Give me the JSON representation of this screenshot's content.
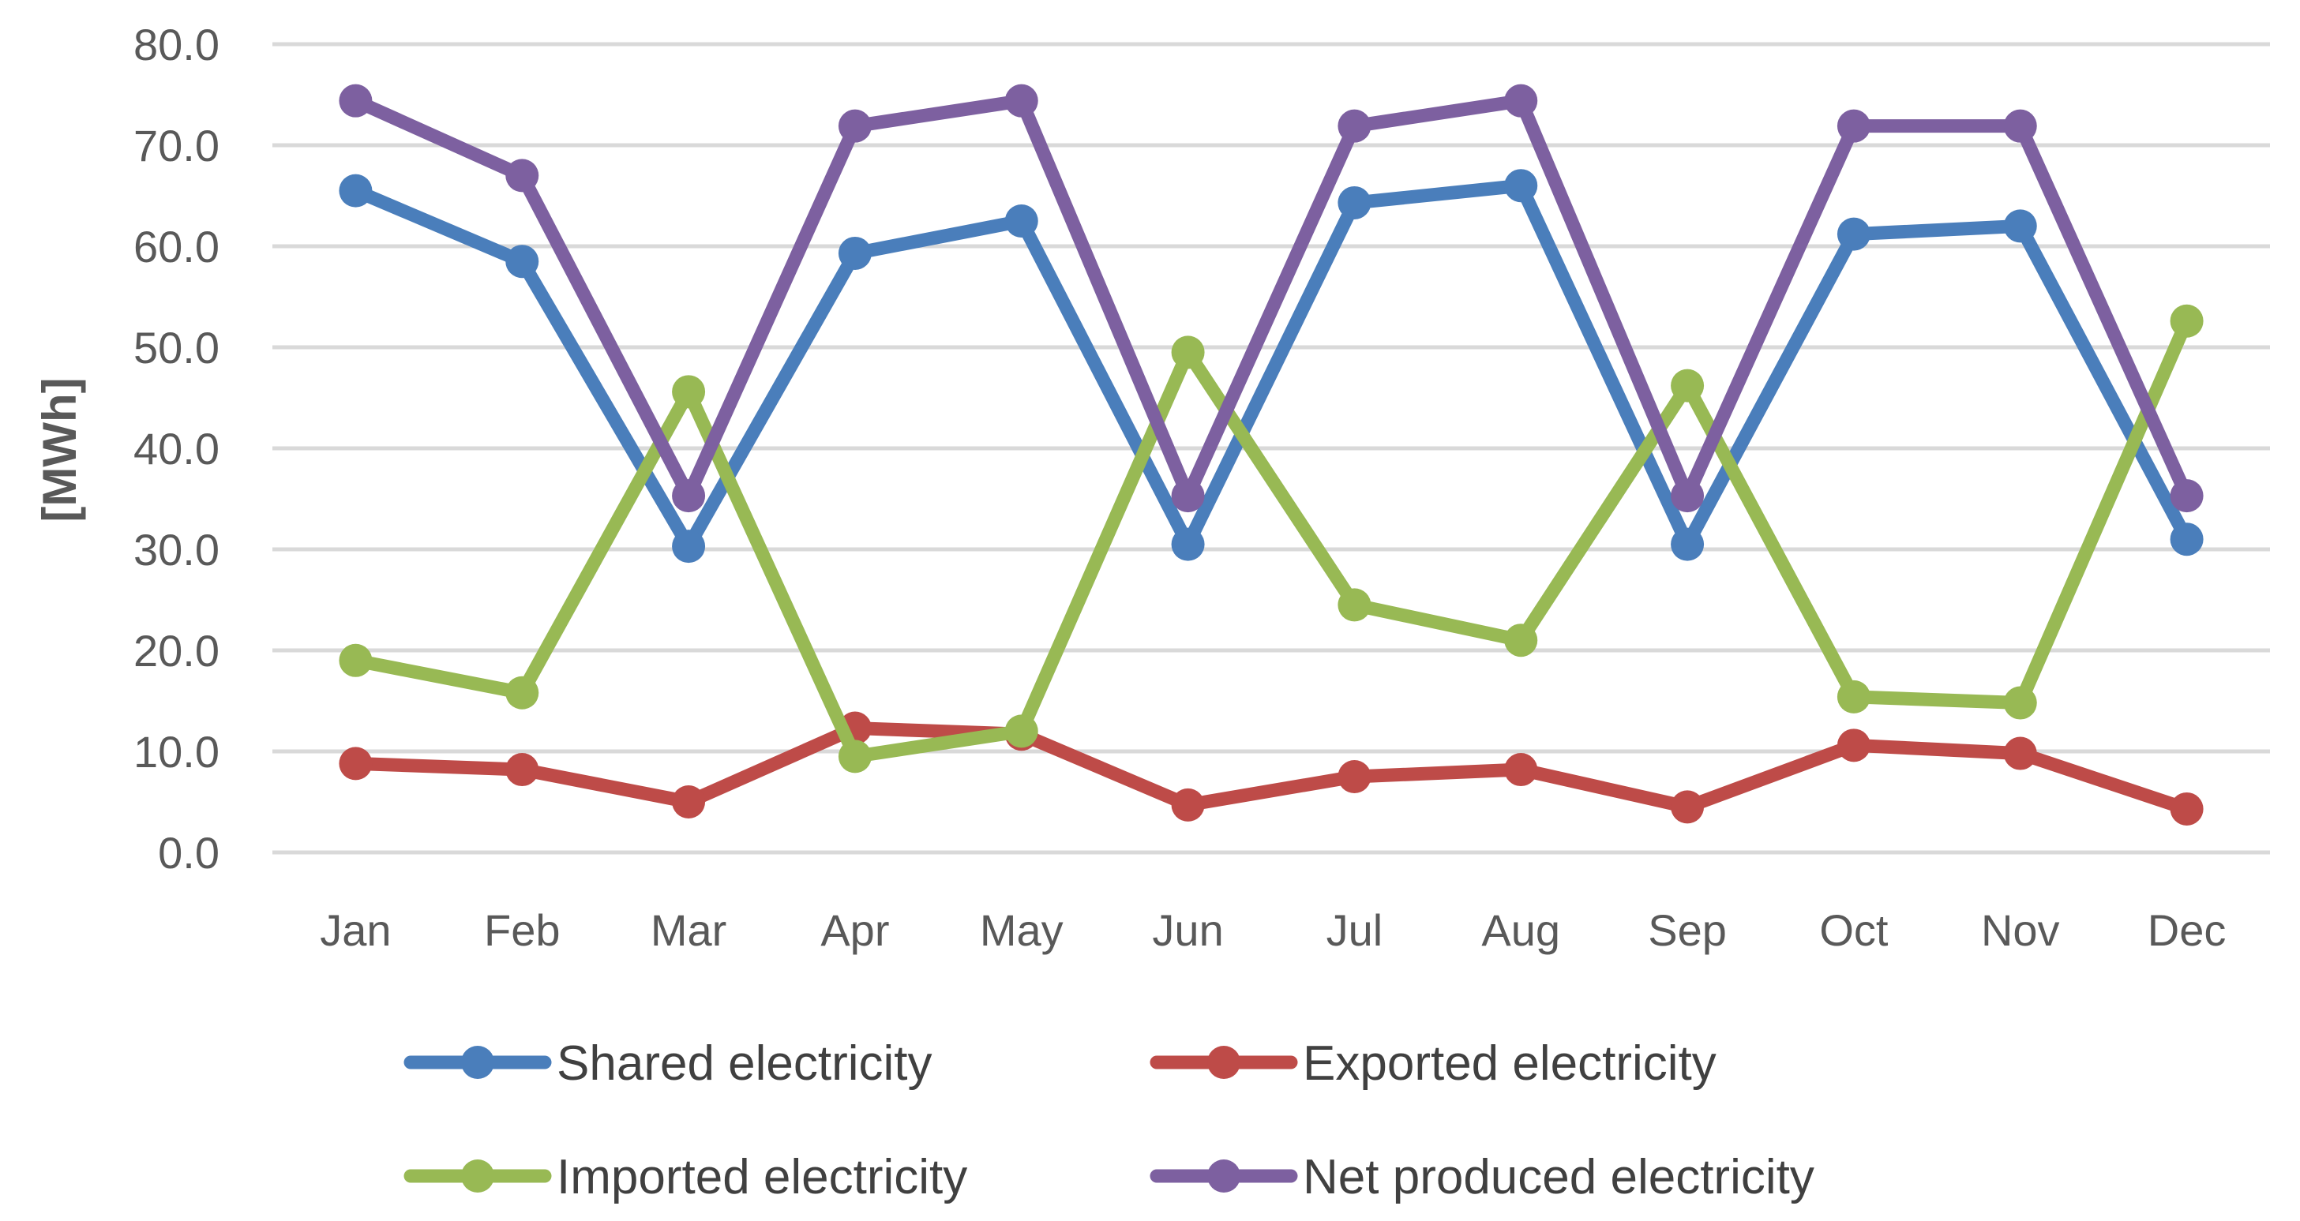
{
  "chart_data": {
    "type": "line",
    "title": "",
    "xlabel": "",
    "ylabel": "[MWh]",
    "ylim": [
      0,
      80
    ],
    "ytick_step": 10,
    "ytick_labels": [
      "0.0",
      "10.0",
      "20.0",
      "30.0",
      "40.0",
      "50.0",
      "60.0",
      "70.0",
      "80.0"
    ],
    "grid": true,
    "legend_position": "bottom",
    "categories": [
      "Jan",
      "Feb",
      "Mar",
      "Apr",
      "May",
      "Jun",
      "Jul",
      "Aug",
      "Sep",
      "Oct",
      "Nov",
      "Dec"
    ],
    "series": [
      {
        "name": "Shared electricity",
        "color": "#4a7ebb",
        "values": [
          65.5,
          58.5,
          30.3,
          59.3,
          62.5,
          30.5,
          64.3,
          66.0,
          30.5,
          61.2,
          62.0,
          31.0
        ]
      },
      {
        "name": "Exported electricity",
        "color": "#be4b48",
        "values": [
          8.8,
          8.2,
          5.0,
          12.3,
          11.7,
          4.7,
          7.5,
          8.2,
          4.5,
          10.6,
          9.8,
          4.3
        ]
      },
      {
        "name": "Imported electricity",
        "color": "#98b954",
        "values": [
          19.0,
          15.8,
          45.6,
          9.5,
          12.0,
          49.5,
          24.5,
          21.0,
          46.2,
          15.4,
          14.8,
          52.6
        ]
      },
      {
        "name": "Net produced electricity",
        "color": "#7d60a0",
        "values": [
          74.4,
          67.0,
          35.3,
          71.9,
          74.4,
          35.3,
          71.9,
          74.4,
          35.3,
          71.9,
          71.9,
          35.3
        ]
      }
    ]
  }
}
